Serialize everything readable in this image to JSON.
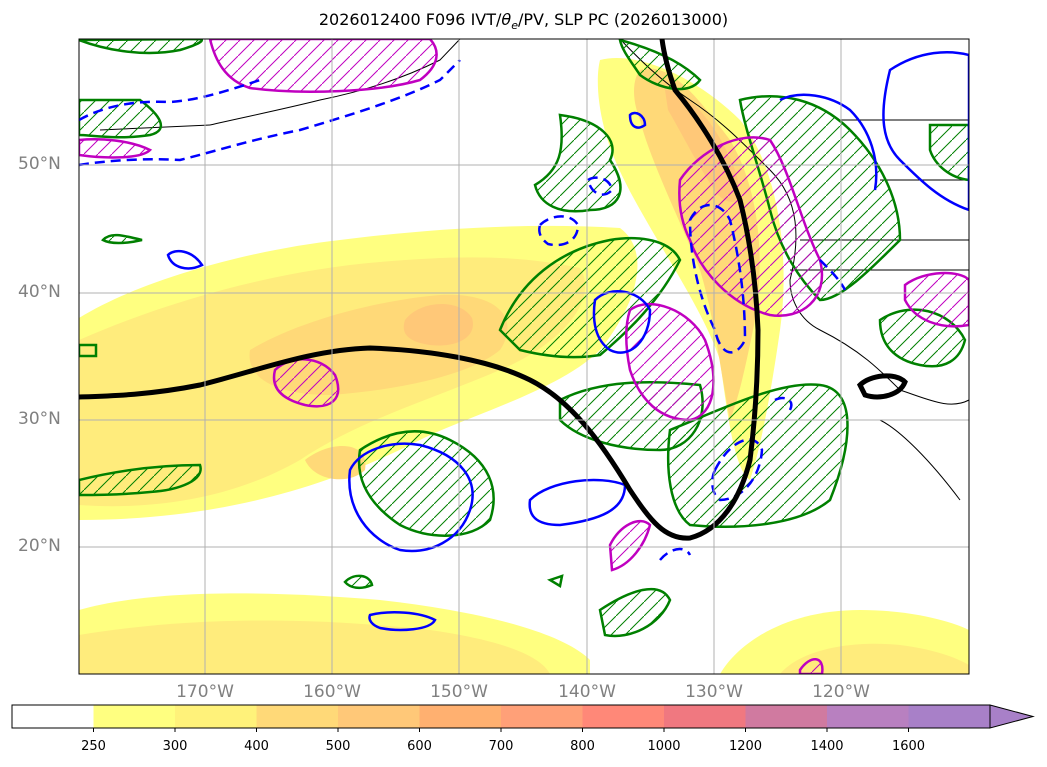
{
  "title": "2026012400 F096 IVT/θe/PV, SLP PC (2026013000)",
  "title_parts": {
    "prefix": "2026012400 F096 IVT/",
    "theta_symbol": "θ",
    "theta_subscript": "e",
    "suffix": "/PV, SLP PC (2026013000)"
  },
  "map": {
    "projection": "lon-lat",
    "lon_range": [
      -180,
      -110
    ],
    "lat_range": [
      10,
      60
    ],
    "grid": true
  },
  "axes": {
    "y_ticks": [
      "20°N",
      "30°N",
      "40°N",
      "50°N"
    ],
    "x_ticks": [
      "170°W",
      "160°W",
      "150°W",
      "140°W",
      "130°W",
      "120°W"
    ]
  },
  "colorbar": {
    "orientation": "horizontal",
    "extend": "max",
    "levels": [
      250,
      300,
      400,
      500,
      600,
      700,
      800,
      1000,
      1200,
      1400,
      1600
    ],
    "labels": [
      "250",
      "300",
      "400",
      "500",
      "600",
      "700",
      "800",
      "1000",
      "1200",
      "1400",
      "1600"
    ],
    "colors": [
      "#ffffff",
      "#ffff80",
      "#fff27a",
      "#ffd978",
      "#ffc878",
      "#ffb070",
      "#ffa078",
      "#ff8878",
      "#f07880",
      "#d07aa0",
      "#b880c0",
      "#a880c8"
    ]
  },
  "legend_colors": {
    "ivt_fill_low": "#ffff80",
    "ivt_fill_mid": "#ffd978",
    "theta_e_contour": "#008000",
    "pv_contour_solid": "#0000ff",
    "pv_contour_dashed": "#0000ff",
    "magenta_contour": "#c000c0",
    "slp_contour": "#000000"
  }
}
